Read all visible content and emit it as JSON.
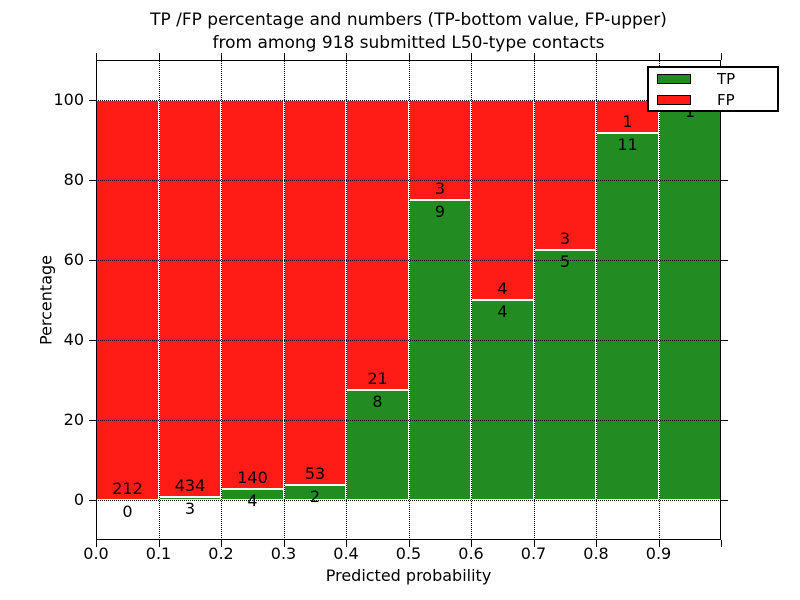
{
  "title": {
    "line1": "TP /FP percentage and numbers (TP-bottom value, FP-upper)",
    "line2": "from among 918 submitted L50-type contacts"
  },
  "axes": {
    "xlabel": "Predicted probability",
    "ylabel": "Percentage",
    "xtick_labels": [
      "0.0",
      "0.1",
      "0.2",
      "0.3",
      "0.4",
      "0.5",
      "0.6",
      "0.7",
      "0.8",
      "0.9"
    ],
    "ytick_labels": [
      "0",
      "20",
      "40",
      "60",
      "80",
      "100"
    ]
  },
  "legend": {
    "items": [
      {
        "label": "TP",
        "color": "#228b22"
      },
      {
        "label": "FP",
        "color": "#ff1b16"
      }
    ]
  },
  "chart_data": {
    "type": "bar",
    "stacked": true,
    "title": "TP /FP percentage and numbers (TP-bottom value, FP-upper) from among 918 submitted L50-type contacts",
    "xlabel": "Predicted probability",
    "ylabel": "Percentage",
    "total_contacts": 918,
    "bin_edges": [
      0.0,
      0.1,
      0.2,
      0.3,
      0.4,
      0.5,
      0.6,
      0.7,
      0.8,
      0.9,
      1.0
    ],
    "series": [
      {
        "name": "TP",
        "color": "#228b22",
        "counts": [
          0,
          3,
          4,
          2,
          8,
          9,
          4,
          5,
          11,
          1
        ]
      },
      {
        "name": "FP",
        "color": "#ff1b16",
        "counts": [
          212,
          434,
          140,
          53,
          21,
          3,
          4,
          3,
          1,
          0
        ]
      }
    ],
    "tp_percent": [
      0.0,
      0.69,
      2.78,
      3.64,
      27.59,
      75.0,
      50.0,
      62.5,
      91.67,
      100.0
    ],
    "xlim": [
      0.0,
      1.0
    ],
    "ylim": [
      -10,
      110
    ],
    "grid": "dotted",
    "legend_position": "upper right"
  }
}
